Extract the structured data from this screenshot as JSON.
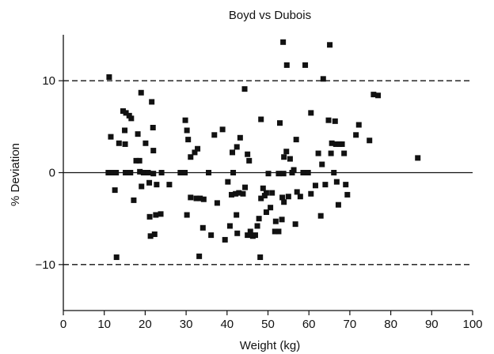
{
  "chart_data": {
    "type": "scatter",
    "title": "Boyd vs Dubois",
    "xlabel": "Weight (kg)",
    "ylabel": "% Deviation",
    "xlim": [
      0,
      100
    ],
    "ylim": [
      -15,
      15
    ],
    "xticks": [
      "0",
      "10",
      "20",
      "30",
      "40",
      "50",
      "60",
      "70",
      "80",
      "90",
      "100"
    ],
    "yticks": [
      "10",
      "0",
      "−10"
    ],
    "grid": false,
    "reference_lines": [
      {
        "y": 10,
        "style": "dashed"
      },
      {
        "y": 0,
        "style": "solid"
      },
      {
        "y": -10,
        "style": "dashed"
      }
    ],
    "marker": "square",
    "marker_color": "#111111",
    "series": [
      {
        "points": [
          [
            11.2,
            10.4
          ],
          [
            11.6,
            3.9
          ],
          [
            11.0,
            0.0
          ],
          [
            11.5,
            0.0
          ],
          [
            12.2,
            0.0
          ],
          [
            12.9,
            0.0
          ],
          [
            12.6,
            -1.9
          ],
          [
            13.0,
            -9.2
          ],
          [
            13.6,
            3.2
          ],
          [
            14.6,
            6.7
          ],
          [
            15.3,
            6.5
          ],
          [
            15.0,
            4.6
          ],
          [
            15.1,
            3.1
          ],
          [
            15.2,
            0.0
          ],
          [
            15.8,
            0.0
          ],
          [
            16.4,
            0.0
          ],
          [
            16.1,
            6.2
          ],
          [
            16.6,
            5.9
          ],
          [
            17.2,
            -3.0
          ],
          [
            17.8,
            1.3
          ],
          [
            18.2,
            4.2
          ],
          [
            18.7,
            0.1
          ],
          [
            18.6,
            1.3
          ],
          [
            19.0,
            8.7
          ],
          [
            19.1,
            -1.5
          ],
          [
            19.6,
            0.0
          ],
          [
            20.1,
            3.2
          ],
          [
            20.7,
            0.0
          ],
          [
            21.0,
            -1.1
          ],
          [
            21.1,
            -4.8
          ],
          [
            21.3,
            -6.9
          ],
          [
            21.6,
            7.7
          ],
          [
            21.9,
            4.9
          ],
          [
            22.0,
            2.4
          ],
          [
            22.0,
            -0.1
          ],
          [
            22.3,
            -6.7
          ],
          [
            22.6,
            -4.6
          ],
          [
            22.8,
            -1.3
          ],
          [
            23.8,
            -4.5
          ],
          [
            24.0,
            0.0
          ],
          [
            25.9,
            -1.3
          ],
          [
            28.6,
            0.0
          ],
          [
            29.7,
            0.0
          ],
          [
            29.8,
            5.7
          ],
          [
            30.2,
            4.6
          ],
          [
            30.5,
            3.6
          ],
          [
            30.2,
            -4.6
          ],
          [
            31.1,
            -2.7
          ],
          [
            31.1,
            1.7
          ],
          [
            32.1,
            2.2
          ],
          [
            32.5,
            -2.8
          ],
          [
            32.8,
            2.6
          ],
          [
            33.4,
            -2.8
          ],
          [
            33.2,
            -9.1
          ],
          [
            34.3,
            -2.9
          ],
          [
            34.1,
            -6.0
          ],
          [
            35.5,
            0.0
          ],
          [
            36.1,
            -6.8
          ],
          [
            36.9,
            4.1
          ],
          [
            37.6,
            -3.3
          ],
          [
            38.9,
            4.7
          ],
          [
            39.5,
            -7.3
          ],
          [
            40.2,
            -1.0
          ],
          [
            40.7,
            -5.8
          ],
          [
            41.1,
            -2.4
          ],
          [
            41.3,
            2.2
          ],
          [
            41.5,
            0.0
          ],
          [
            42.3,
            -4.6
          ],
          [
            42.4,
            2.8
          ],
          [
            42.1,
            -2.3
          ],
          [
            42.5,
            -6.6
          ],
          [
            42.9,
            -2.2
          ],
          [
            43.2,
            3.8
          ],
          [
            43.9,
            -2.3
          ],
          [
            44.4,
            -1.6
          ],
          [
            44.3,
            9.1
          ],
          [
            45.0,
            -6.8
          ],
          [
            45.4,
            1.3
          ],
          [
            45.0,
            2.0
          ],
          [
            45.7,
            -6.4
          ],
          [
            46.3,
            -6.9
          ],
          [
            46.9,
            -6.8
          ],
          [
            47.4,
            -5.8
          ],
          [
            47.8,
            -5.0
          ],
          [
            48.1,
            -9.2
          ],
          [
            48.3,
            5.8
          ],
          [
            48.3,
            -2.8
          ],
          [
            48.8,
            -1.7
          ],
          [
            49.6,
            -4.3
          ],
          [
            49.2,
            -2.5
          ],
          [
            49.6,
            -2.2
          ],
          [
            50.1,
            -0.1
          ],
          [
            50.6,
            -3.8
          ],
          [
            51.0,
            -2.2
          ],
          [
            51.7,
            -6.4
          ],
          [
            51.9,
            -5.3
          ],
          [
            52.6,
            -6.4
          ],
          [
            52.6,
            -0.1
          ],
          [
            52.9,
            5.4
          ],
          [
            53.4,
            -5.1
          ],
          [
            53.7,
            14.2
          ],
          [
            53.5,
            -2.7
          ],
          [
            53.9,
            -3.2
          ],
          [
            53.8,
            -0.1
          ],
          [
            53.9,
            1.7
          ],
          [
            54.5,
            2.3
          ],
          [
            54.6,
            11.7
          ],
          [
            55.0,
            -2.6
          ],
          [
            55.4,
            1.5
          ],
          [
            55.9,
            0.0
          ],
          [
            56.3,
            0.3
          ],
          [
            56.7,
            -5.6
          ],
          [
            56.9,
            3.6
          ],
          [
            57.1,
            -2.1
          ],
          [
            57.9,
            -2.6
          ],
          [
            58.6,
            0.0
          ],
          [
            59.1,
            11.7
          ],
          [
            59.8,
            0.0
          ],
          [
            60.5,
            6.5
          ],
          [
            60.5,
            -2.3
          ],
          [
            61.6,
            -1.4
          ],
          [
            62.3,
            2.1
          ],
          [
            62.9,
            -4.7
          ],
          [
            63.2,
            0.9
          ],
          [
            63.5,
            10.2
          ],
          [
            64.0,
            -1.3
          ],
          [
            64.8,
            5.7
          ],
          [
            65.1,
            13.9
          ],
          [
            65.4,
            2.1
          ],
          [
            65.6,
            3.2
          ],
          [
            66.1,
            0.0
          ],
          [
            66.4,
            5.6
          ],
          [
            66.6,
            3.1
          ],
          [
            66.8,
            -1.0
          ],
          [
            67.2,
            -3.5
          ],
          [
            67.5,
            3.1
          ],
          [
            68.1,
            3.1
          ],
          [
            68.6,
            2.1
          ],
          [
            69.0,
            -1.3
          ],
          [
            69.4,
            -2.4
          ],
          [
            71.5,
            4.1
          ],
          [
            72.2,
            5.2
          ],
          [
            74.8,
            3.5
          ],
          [
            75.8,
            8.5
          ],
          [
            76.9,
            8.4
          ],
          [
            86.6,
            1.6
          ]
        ]
      }
    ]
  }
}
